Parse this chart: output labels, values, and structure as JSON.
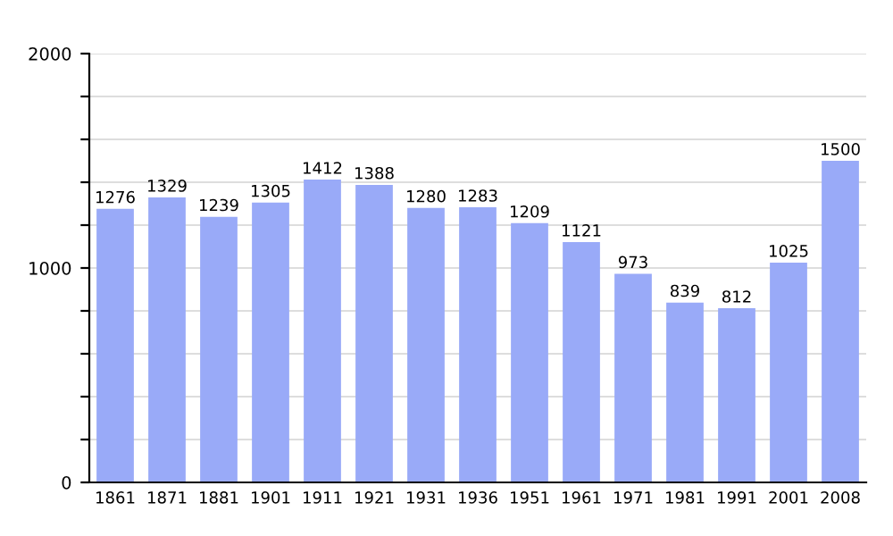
{
  "chart_data": {
    "type": "bar",
    "categories": [
      "1861",
      "1871",
      "1881",
      "1901",
      "1911",
      "1921",
      "1931",
      "1936",
      "1951",
      "1961",
      "1971",
      "1981",
      "1991",
      "2001",
      "2008"
    ],
    "values": [
      1276,
      1329,
      1239,
      1305,
      1412,
      1388,
      1280,
      1283,
      1209,
      1121,
      973,
      839,
      812,
      1025,
      1500
    ],
    "color": "#99aaf8",
    "data_labels": true,
    "grid": "y",
    "ylim": [
      0,
      2000
    ],
    "yticks": [
      0,
      {
        "value": 200,
        "label": null
      },
      {
        "value": 400,
        "label": null
      },
      {
        "value": 600,
        "label": null
      },
      {
        "value": 800,
        "label": null
      },
      1000,
      {
        "value": 1200,
        "label": null
      },
      {
        "value": 1400,
        "label": null
      },
      {
        "value": 1600,
        "label": null
      },
      {
        "value": 1800,
        "label": null
      },
      2000
    ]
  }
}
